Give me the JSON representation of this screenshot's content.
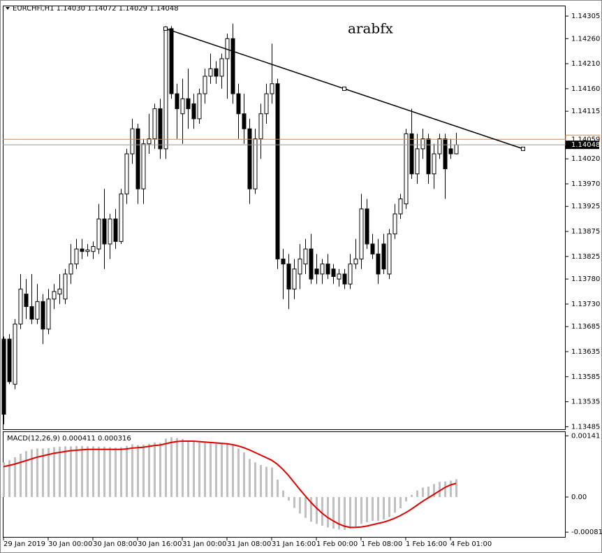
{
  "chart_data": [
    {
      "type": "candlestick",
      "title": "EURCHFi,H1 1.14030 1.14072 1.14029 1.14048",
      "annotation": "arabfx",
      "open": [
        1.1366,
        1.1366,
        1.1357,
        1.1369,
        1.1375,
        1.13725,
        1.137,
        1.13735,
        1.1368,
        1.1374,
        1.1375,
        1.1374,
        1.1379,
        1.1381,
        1.1384,
        1.13835,
        1.13835,
        1.1384,
        1.139,
        1.1385,
        1.139,
        1.13855,
        1.1395,
        1.1403,
        1.1408,
        1.1396,
        1.1405,
        1.1406,
        1.1412,
        1.1404,
        1.1428,
        1.1415,
        1.1411,
        1.1414,
        1.1413,
        1.141,
        1.1415,
        1.14185,
        1.142,
        1.14185,
        1.1422,
        1.1426,
        1.1415,
        1.1411,
        1.1408,
        1.1396,
        1.1406,
        1.1411,
        1.1415,
        1.1417,
        1.1382,
        1.1381,
        1.1376,
        1.1379,
        1.1381,
        1.1384,
        1.138,
        1.1379,
        1.1381,
        1.138,
        1.1378,
        1.1379,
        1.1377,
        1.1381,
        1.1382,
        1.1392,
        1.1385,
        1.1383,
        1.1385,
        1.1379,
        1.1387,
        1.1391,
        1.1393,
        1.1407,
        1.1399,
        1.1404,
        1.1406,
        1.1399,
        1.1403,
        1.1406,
        1.1404,
        1.1403
      ],
      "high": [
        1.13665,
        1.1367,
        1.137,
        1.1379,
        1.1378,
        1.1379,
        1.1377,
        1.1375,
        1.1376,
        1.1377,
        1.1379,
        1.138,
        1.1385,
        1.1386,
        1.1386,
        1.1385,
        1.13855,
        1.1393,
        1.1396,
        1.1391,
        1.1392,
        1.1396,
        1.1404,
        1.141,
        1.1409,
        1.1406,
        1.1411,
        1.1413,
        1.1414,
        1.14285,
        1.14285,
        1.1417,
        1.1418,
        1.142,
        1.1415,
        1.1416,
        1.142,
        1.1423,
        1.14215,
        1.1423,
        1.1427,
        1.1429,
        1.1417,
        1.1415,
        1.141,
        1.1408,
        1.1413,
        1.1417,
        1.1425,
        1.1418,
        1.1384,
        1.1383,
        1.1382,
        1.1385,
        1.1386,
        1.1387,
        1.1383,
        1.1382,
        1.1383,
        1.1381,
        1.138,
        1.138,
        1.1383,
        1.1386,
        1.1395,
        1.1394,
        1.1387,
        1.1386,
        1.1387,
        1.1388,
        1.1393,
        1.1395,
        1.1408,
        1.1412,
        1.1407,
        1.1408,
        1.1407,
        1.1405,
        1.1407,
        1.1407,
        1.1406,
        1.14072
      ],
      "low": [
        1.1349,
        1.1357,
        1.1356,
        1.1368,
        1.137,
        1.1369,
        1.1369,
        1.1365,
        1.1367,
        1.1372,
        1.1373,
        1.1373,
        1.1377,
        1.138,
        1.1382,
        1.13825,
        1.1382,
        1.1383,
        1.138,
        1.1382,
        1.1384,
        1.1385,
        1.1393,
        1.1401,
        1.1393,
        1.1393,
        1.1403,
        1.1404,
        1.1402,
        1.1402,
        1.1414,
        1.1406,
        1.1405,
        1.1408,
        1.1408,
        1.1409,
        1.1413,
        1.1417,
        1.1417,
        1.1416,
        1.1414,
        1.1413,
        1.1406,
        1.1405,
        1.1393,
        1.1395,
        1.1402,
        1.1409,
        1.1413,
        1.138,
        1.1374,
        1.1372,
        1.1374,
        1.1376,
        1.1379,
        1.1377,
        1.1377,
        1.1377,
        1.1378,
        1.1377,
        1.13765,
        1.1376,
        1.1376,
        1.138,
        1.138,
        1.1384,
        1.1382,
        1.1377,
        1.1379,
        1.1378,
        1.1386,
        1.139,
        1.1392,
        1.1398,
        1.1397,
        1.1402,
        1.1397,
        1.1396,
        1.1402,
        1.1394,
        1.1402,
        1.14029
      ],
      "close": [
        1.1351,
        1.13575,
        1.1369,
        1.1376,
        1.13725,
        1.137,
        1.13735,
        1.1368,
        1.1374,
        1.13755,
        1.1376,
        1.1379,
        1.1381,
        1.1384,
        1.13835,
        1.13838,
        1.13845,
        1.139,
        1.1385,
        1.139,
        1.13855,
        1.1395,
        1.1403,
        1.1408,
        1.1396,
        1.1405,
        1.1406,
        1.1412,
        1.1404,
        1.1428,
        1.1415,
        1.1412,
        1.1414,
        1.1412,
        1.141,
        1.1415,
        1.14185,
        1.142,
        1.14185,
        1.1422,
        1.1426,
        1.1415,
        1.1411,
        1.1408,
        1.1396,
        1.1406,
        1.1411,
        1.1415,
        1.1417,
        1.1382,
        1.1381,
        1.1376,
        1.138,
        1.1382,
        1.1384,
        1.1378,
        1.1379,
        1.1381,
        1.1379,
        1.13785,
        1.1379,
        1.1377,
        1.1381,
        1.1382,
        1.1392,
        1.1385,
        1.1383,
        1.1379,
        1.138,
        1.1387,
        1.1391,
        1.1394,
        1.1407,
        1.1399,
        1.1404,
        1.1406,
        1.1399,
        1.1403,
        1.1406,
        1.14,
        1.1403,
        1.14048
      ],
      "up_color": "#ffffff",
      "down_color": "#000000",
      "ylim": [
        1.1348,
        1.14326
      ],
      "yticks": [
        1.14305,
        {
          "value": 1.1426,
          "label": "1.14260"
        },
        {
          "value": 1.1421,
          "label": "1.14210"
        },
        {
          "value": 1.1416,
          "label": "1.14160"
        },
        1.14115,
        {
          "value": 1.1402,
          "label": "1.14020"
        },
        {
          "value": 1.1397,
          "label": "1.13970"
        },
        1.13925,
        1.13875,
        1.13825,
        {
          "value": 1.1378,
          "label": "1.13780"
        },
        {
          "value": 1.1373,
          "label": "1.13730"
        },
        1.13685,
        1.13635,
        1.13585,
        1.13535,
        1.13485
      ],
      "xticks": [
        {
          "value": 0,
          "label": "29 Jan 2019"
        },
        {
          "value": 8,
          "label": "30 Jan 00:00"
        },
        {
          "value": 16,
          "label": "30 Jan 08:00"
        },
        {
          "value": 24,
          "label": "30 Jan 16:00"
        },
        {
          "value": 32,
          "label": "31 Jan 00:00"
        },
        {
          "value": 40,
          "label": "31 Jan 08:00"
        },
        {
          "value": 48,
          "label": "31 Jan 16:00"
        },
        {
          "value": 56,
          "label": "1 Feb 00:00"
        },
        {
          "value": 64,
          "label": "1 Feb 08:00"
        },
        {
          "value": 72,
          "label": "1 Feb 16:00"
        },
        {
          "value": 80,
          "label": "4 Feb 01:00"
        }
      ],
      "bid": 1.14048,
      "ask": 1.14059,
      "ask_color": "#e8823a",
      "trendline": {
        "x": [
          29,
          93
        ],
        "values": [
          1.1428,
          1.1404
        ],
        "color": "#000000"
      }
    },
    {
      "type": "macd",
      "title": "MACD(12,26,9) 0.000411 0.000316",
      "series": [
        {
          "kind": "bar",
          "color": "#c0c0c0",
          "values": [
            0.0008,
            0.00085,
            0.00092,
            0.001,
            0.00106,
            0.0011,
            0.00112,
            0.00112,
            0.00113,
            0.00115,
            0.00116,
            0.00117,
            0.00117,
            0.00118,
            0.00118,
            0.00117,
            0.00117,
            0.00116,
            0.00116,
            0.00115,
            0.00114,
            0.00115,
            0.00118,
            0.00122,
            0.0012,
            0.00121,
            0.00123,
            0.00126,
            0.00125,
            0.00135,
            0.00138,
            0.00136,
            0.00134,
            0.00131,
            0.00128,
            0.00126,
            0.00125,
            0.00124,
            0.00123,
            0.00124,
            0.00125,
            0.0012,
            0.00112,
            0.00103,
            0.00088,
            0.0008,
            0.00074,
            0.0007,
            0.00068,
            0.0004,
            0.00015,
            -8e-05,
            -0.00025,
            -0.00038,
            -0.00048,
            -0.00057,
            -0.00062,
            -0.00066,
            -0.0007,
            -0.00073,
            -0.00075,
            -0.00076,
            -0.00073,
            -0.0007,
            -0.00062,
            -0.00058,
            -0.00055,
            -0.00055,
            -0.00052,
            -0.00046,
            -0.00036,
            -0.00026,
            -0.0001,
            5e-05,
            0.00015,
            0.00022,
            0.00024,
            0.0003,
            0.00035,
            0.00036,
            0.00038,
            0.000411
          ]
        },
        {
          "kind": "line",
          "color": "#e00000",
          "values": [
            0.0007,
            0.00073,
            0.00076,
            0.0008,
            0.00084,
            0.00088,
            0.00092,
            0.00095,
            0.00098,
            0.00101,
            0.00103,
            0.00105,
            0.00107,
            0.00108,
            0.00109,
            0.0011,
            0.0011,
            0.0011,
            0.0011,
            0.0011,
            0.0011,
            0.0011,
            0.00111,
            0.00113,
            0.00114,
            0.00115,
            0.00117,
            0.00119,
            0.0012,
            0.00123,
            0.00126,
            0.00128,
            0.00129,
            0.00129,
            0.00129,
            0.00128,
            0.00127,
            0.00126,
            0.00125,
            0.00124,
            0.00123,
            0.00121,
            0.00118,
            0.00114,
            0.00109,
            0.00103,
            0.00097,
            0.00091,
            0.00085,
            0.00076,
            0.00064,
            0.0005,
            0.00034,
            0.00018,
            3e-05,
            -0.00012,
            -0.00025,
            -0.00037,
            -0.00047,
            -0.00055,
            -0.00062,
            -0.00067,
            -0.0007,
            -0.0007,
            -0.00069,
            -0.00067,
            -0.00064,
            -0.00061,
            -0.00058,
            -0.00054,
            -0.00049,
            -0.00043,
            -0.00036,
            -0.00028,
            -0.00019,
            -0.0001,
            -2e-05,
            6e-05,
            0.00014,
            0.00022,
            0.00028,
            0.000316
          ]
        }
      ],
      "ylim": [
        -0.00092,
        0.0015
      ],
      "yticks": [
        0.00141,
        {
          "value": 0,
          "label": "0.00"
        },
        -0.00081
      ]
    }
  ]
}
